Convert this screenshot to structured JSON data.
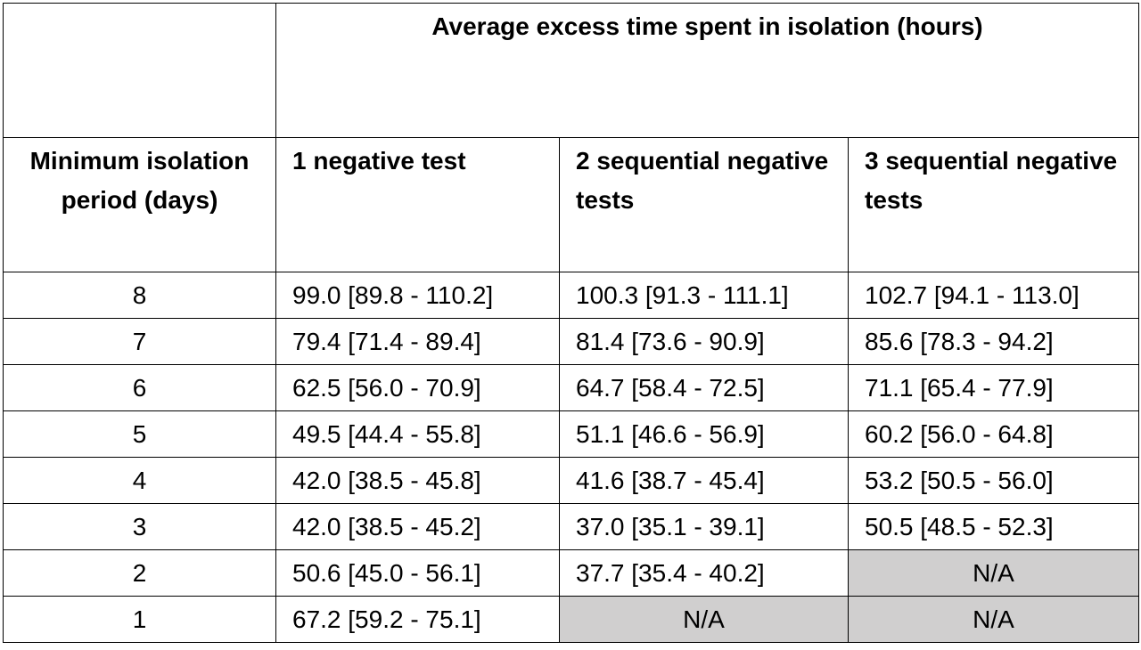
{
  "table": {
    "title": "Average excess time spent in isolation (hours)",
    "row_header": "Minimum isolation period (days)",
    "columns": [
      "1 negative test",
      "2 sequential negative tests",
      "3 sequential negative tests"
    ],
    "rows": [
      {
        "days": "8",
        "cells": [
          "99.0 [89.8 - 110.2]",
          "100.3 [91.3 - 111.1]",
          "102.7 [94.1 - 113.0]"
        ]
      },
      {
        "days": "7",
        "cells": [
          "79.4 [71.4 - 89.4]",
          "81.4 [73.6 - 90.9]",
          "85.6 [78.3 - 94.2]"
        ]
      },
      {
        "days": "6",
        "cells": [
          "62.5 [56.0 - 70.9]",
          "64.7 [58.4 - 72.5]",
          "71.1 [65.4 - 77.9]"
        ]
      },
      {
        "days": "5",
        "cells": [
          "49.5 [44.4 - 55.8]",
          "51.1 [46.6 - 56.9]",
          "60.2 [56.0 - 64.8]"
        ]
      },
      {
        "days": "4",
        "cells": [
          "42.0 [38.5 - 45.8]",
          "41.6 [38.7 - 45.4]",
          "53.2 [50.5 - 56.0]"
        ]
      },
      {
        "days": "3",
        "cells": [
          "42.0 [38.5 - 45.2]",
          "37.0 [35.1 - 39.1]",
          "50.5 [48.5 - 52.3]"
        ]
      },
      {
        "days": "2",
        "cells": [
          "50.6 [45.0 - 56.1]",
          "37.7 [35.4 - 40.2]",
          "N/A"
        ]
      },
      {
        "days": "1",
        "cells": [
          "67.2 [59.2 - 75.1]",
          "N/A",
          "N/A"
        ]
      }
    ],
    "na_fill_color": "#d0cfcf"
  }
}
